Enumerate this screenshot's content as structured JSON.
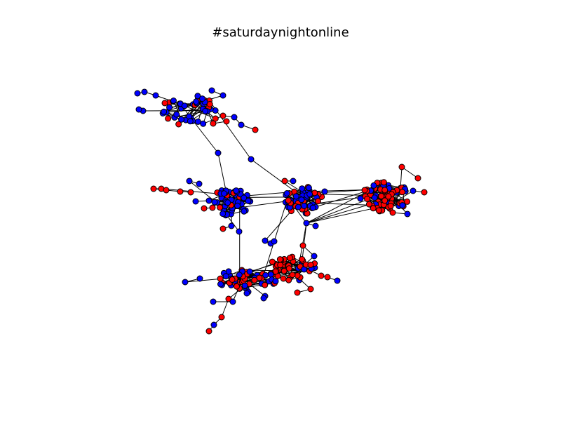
{
  "title": "#saturdaynightonline",
  "colors": {
    "group_a": "#0000ff",
    "group_b": "#ff0000",
    "edge": "#000000"
  },
  "node_groups": [
    "group_a",
    "group_b"
  ]
}
